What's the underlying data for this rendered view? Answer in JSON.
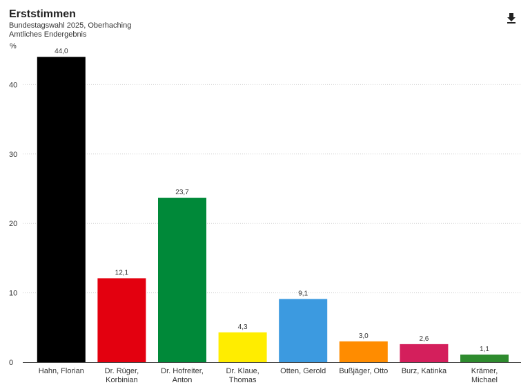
{
  "header": {
    "title": "Erststimmen",
    "subtitle_line1": "Bundestagswahl 2025, Oberhaching",
    "subtitle_line2": "Amtliches Endergebnis"
  },
  "toolbar": {
    "download_icon": "download-icon"
  },
  "chart_data": {
    "type": "bar",
    "y_unit": "%",
    "ylim": [
      0,
      45
    ],
    "yticks": [
      0,
      10,
      20,
      30,
      40
    ],
    "grid": true,
    "categories": [
      [
        "Hahn, Florian"
      ],
      [
        "Dr. Rüger,",
        "Korbinian"
      ],
      [
        "Dr. Hofreiter,",
        "Anton"
      ],
      [
        "Dr. Klaue,",
        "Thomas"
      ],
      [
        "Otten, Gerold"
      ],
      [
        "Bußjäger, Otto"
      ],
      [
        "Burz, Katinka"
      ],
      [
        "Krämer,",
        "Michael"
      ]
    ],
    "values": [
      44.0,
      12.1,
      23.7,
      4.3,
      9.1,
      3.0,
      2.6,
      1.1
    ],
    "value_labels": [
      "44,0",
      "12,1",
      "23,7",
      "4,3",
      "9,1",
      "3,0",
      "2,6",
      "1,1"
    ],
    "colors": [
      "#000000",
      "#e3000f",
      "#008939",
      "#ffed00",
      "#3c9ae0",
      "#ff8c00",
      "#d41f5c",
      "#2e8b2e"
    ]
  }
}
